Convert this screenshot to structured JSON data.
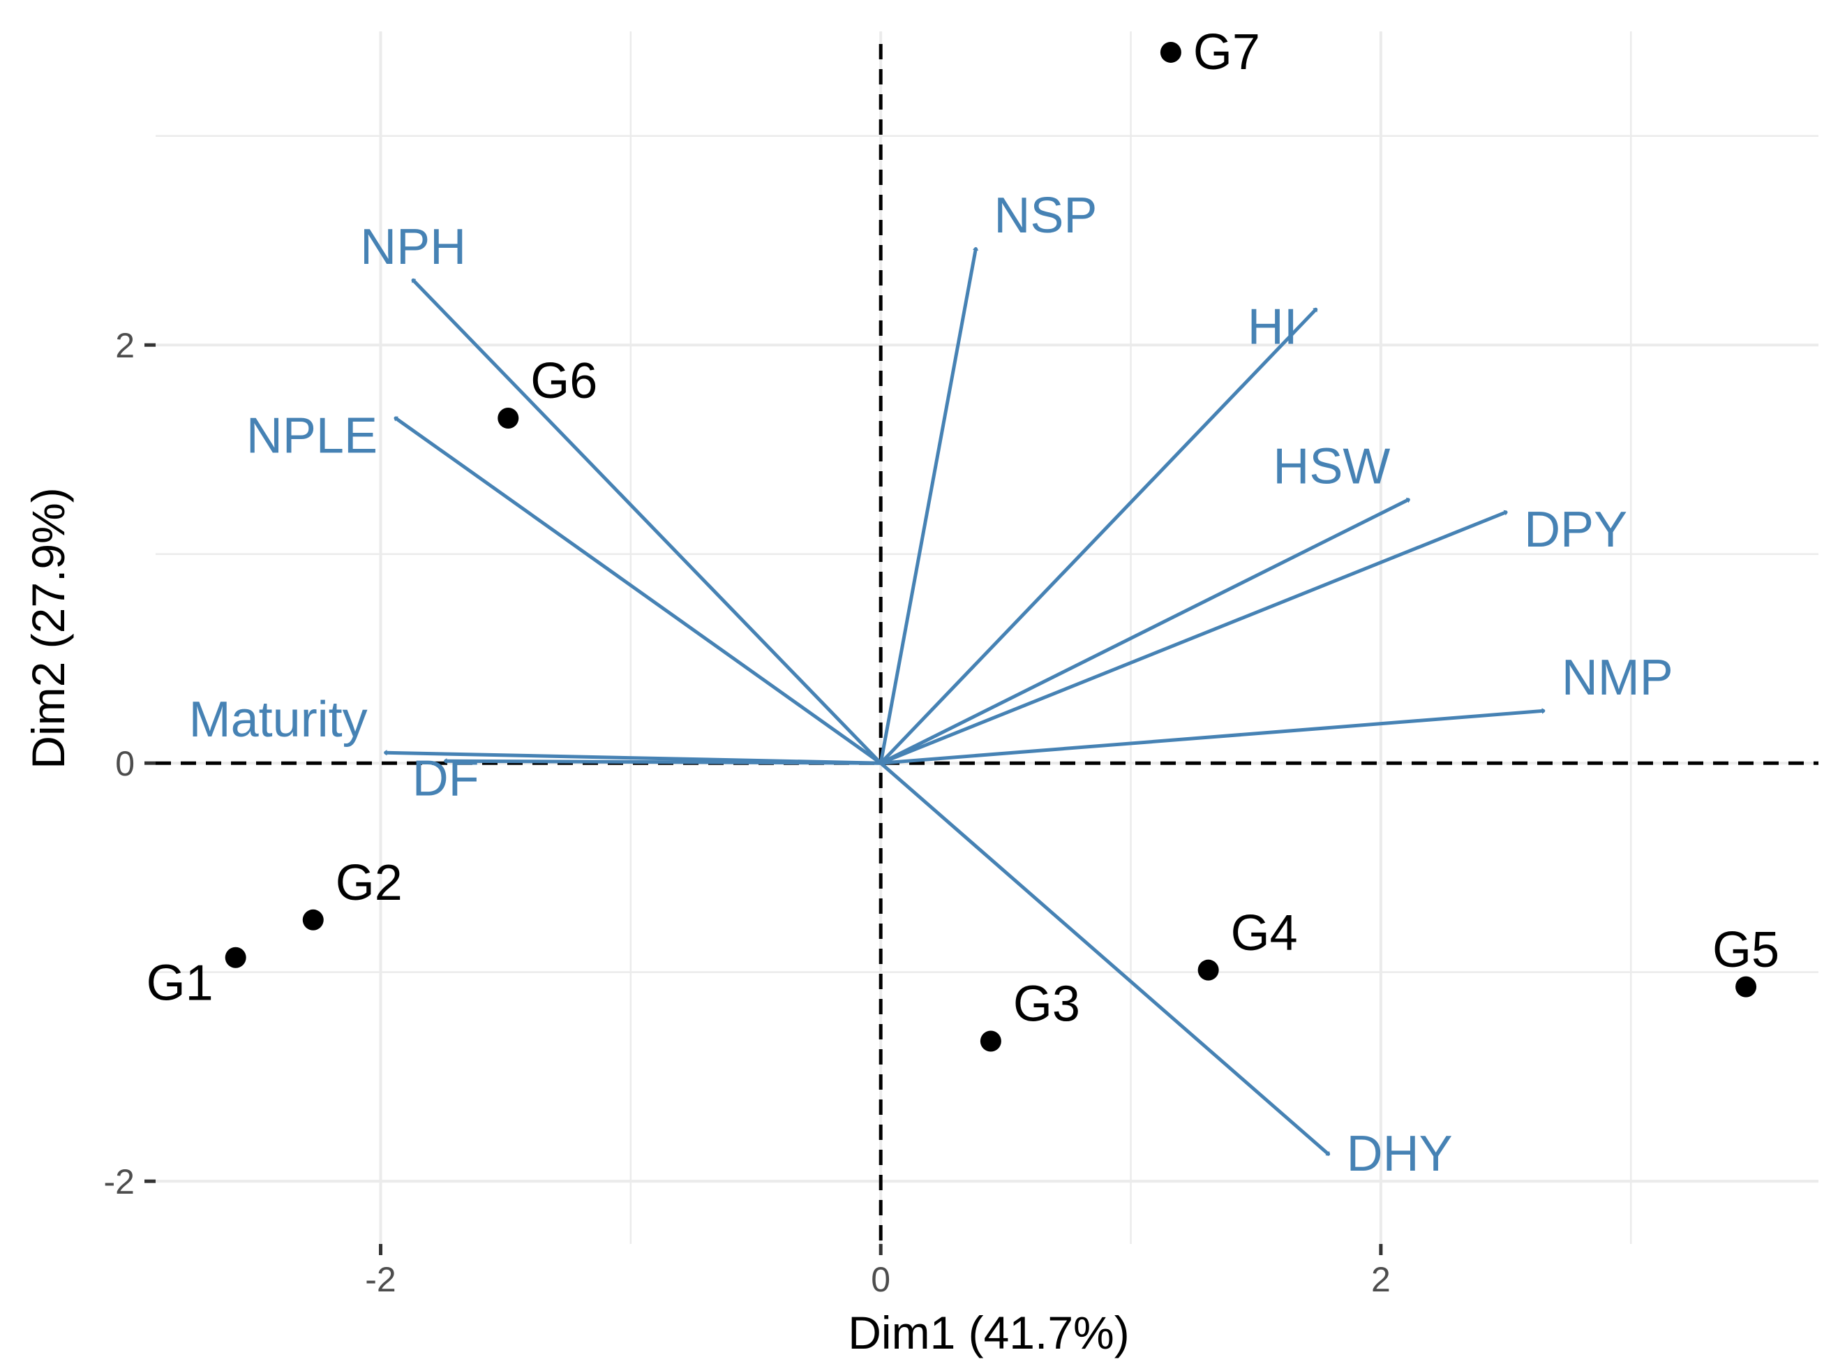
{
  "chart_data": {
    "type": "scatter",
    "subtype": "pca-biplot",
    "title": "",
    "xlabel": "Dim1 (41.7%)",
    "ylabel": "Dim2 (27.9%)",
    "xlim": [
      -2.9,
      3.75
    ],
    "ylim": [
      -2.3,
      3.5
    ],
    "x_major_ticks": [
      -2,
      0,
      2
    ],
    "y_major_ticks": [
      -2,
      0,
      2
    ],
    "x_tick_labels": [
      "-2",
      "0",
      "2"
    ],
    "y_tick_labels": [
      "-2",
      "0",
      "2"
    ],
    "x_gridlines": [
      -2,
      -1,
      0,
      1,
      2,
      3
    ],
    "y_gridlines": [
      -2,
      -1,
      0,
      1,
      2,
      3
    ],
    "grid": true,
    "zero_reference_lines": true,
    "colors": {
      "individuals": "#000000",
      "variables": "#4682b4",
      "grid": "#ebebeb",
      "background": "#ffffff"
    },
    "individuals": [
      {
        "label": "G1",
        "x": -2.58,
        "y": -0.93,
        "label_pos": "below-left"
      },
      {
        "label": "G2",
        "x": -2.27,
        "y": -0.75,
        "label_pos": "above-right"
      },
      {
        "label": "G3",
        "x": 0.44,
        "y": -1.33,
        "label_pos": "above-right"
      },
      {
        "label": "G4",
        "x": 1.31,
        "y": -0.99,
        "label_pos": "above-right"
      },
      {
        "label": "G5",
        "x": 3.46,
        "y": -1.07,
        "label_pos": "above"
      },
      {
        "label": "G6",
        "x": -1.49,
        "y": 1.65,
        "label_pos": "above-right"
      },
      {
        "label": "G7",
        "x": 1.16,
        "y": 3.4,
        "label_pos": "right"
      }
    ],
    "variables": [
      {
        "label": "NPH",
        "x": -1.87,
        "y": 2.31,
        "label_pos": "above"
      },
      {
        "label": "NPLE",
        "x": -1.94,
        "y": 1.65,
        "label_pos": "below-left"
      },
      {
        "label": "Maturity",
        "x": -1.98,
        "y": 0.05,
        "label_pos": "above-left"
      },
      {
        "label": "DF",
        "x": -1.74,
        "y": 0.01,
        "label_pos": "below"
      },
      {
        "label": "NSP",
        "x": 0.38,
        "y": 2.46,
        "label_pos": "above-right"
      },
      {
        "label": "HI",
        "x": 1.74,
        "y": 2.17,
        "label_pos": "below-left"
      },
      {
        "label": "HSW",
        "x": 2.11,
        "y": 1.26,
        "label_pos": "above-left"
      },
      {
        "label": "DPY",
        "x": 2.5,
        "y": 1.2,
        "label_pos": "below-right"
      },
      {
        "label": "NMP",
        "x": 2.65,
        "y": 0.25,
        "label_pos": "above-right"
      },
      {
        "label": "DHY",
        "x": 1.79,
        "y": -1.87,
        "label_pos": "right"
      }
    ]
  }
}
